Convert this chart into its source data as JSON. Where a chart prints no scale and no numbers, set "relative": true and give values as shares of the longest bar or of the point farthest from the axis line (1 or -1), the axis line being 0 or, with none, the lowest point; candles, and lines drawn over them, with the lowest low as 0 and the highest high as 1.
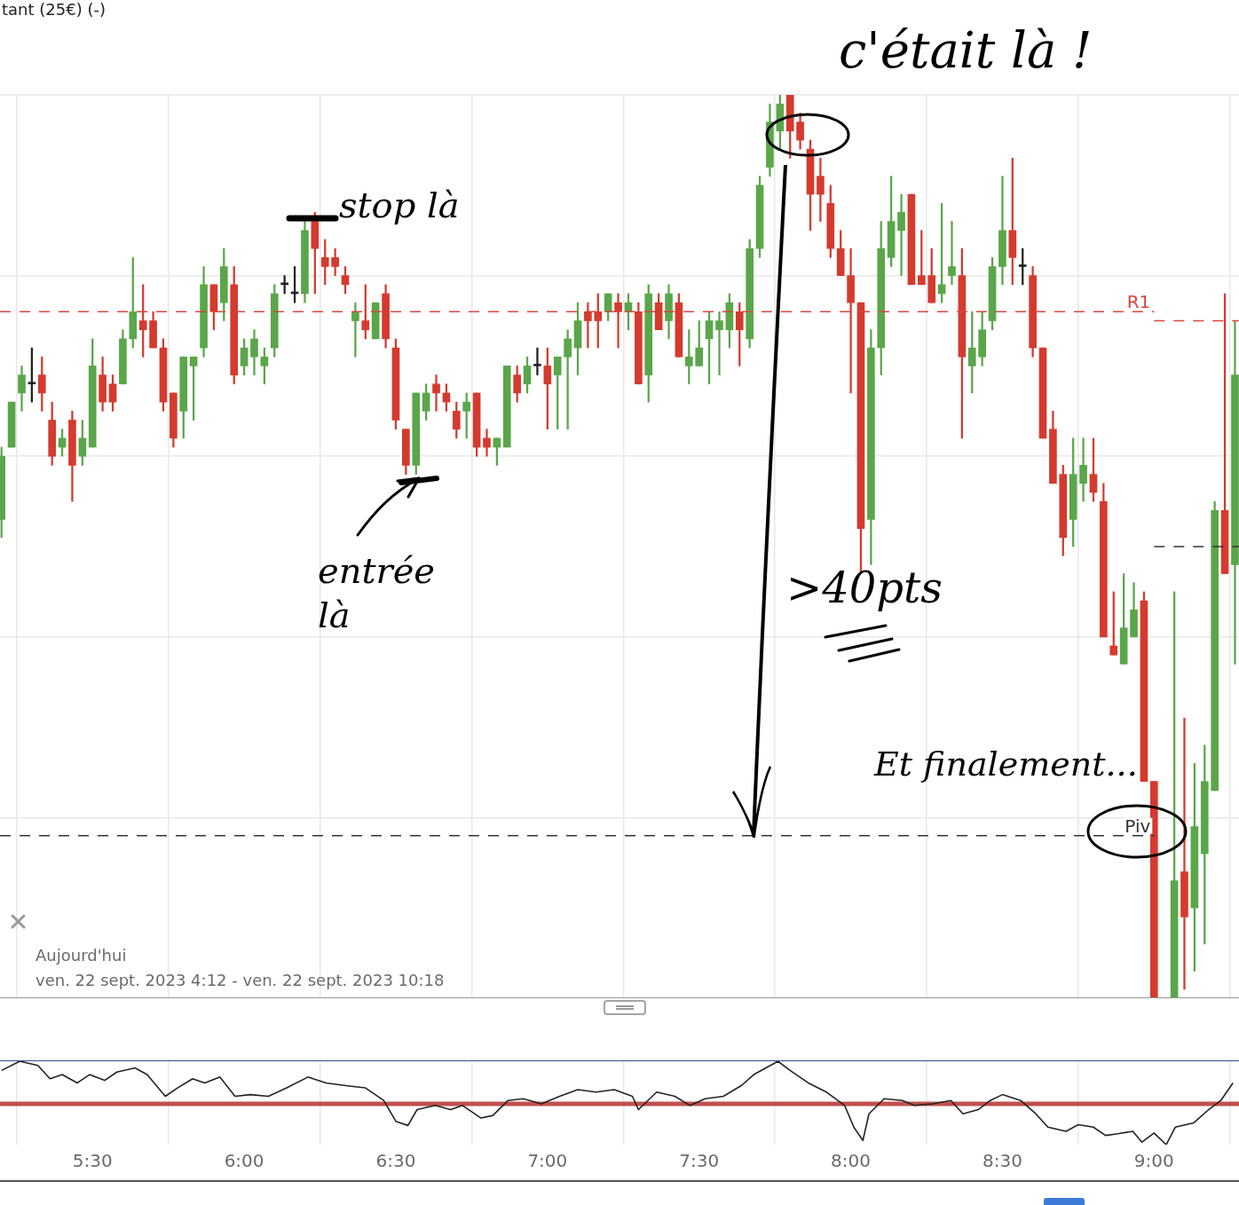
{
  "chart_data": [
    {
      "type": "candlestick",
      "relative": true,
      "grid": true,
      "tick_labels": false,
      "xlim": [
        5.195,
        9.28
      ],
      "xticks": [
        {
          "value": 5.5,
          "label": null
        },
        {
          "value": 6,
          "label": null
        },
        {
          "value": 6.5,
          "label": null
        },
        {
          "value": 7,
          "label": null
        },
        {
          "value": 7.5,
          "label": null
        },
        {
          "value": 8,
          "label": null
        },
        {
          "value": 8.5,
          "label": null
        },
        {
          "value": 9,
          "label": null
        }
      ],
      "x": [
        5.2,
        5.2333,
        5.2667,
        5.3,
        5.3333,
        5.3667,
        5.4,
        5.4333,
        5.4667,
        5.5,
        5.5333,
        5.5667,
        5.6,
        5.6333,
        5.6667,
        5.7,
        5.7333,
        5.7667,
        5.8,
        5.8333,
        5.8667,
        5.9,
        5.9333,
        5.9667,
        6,
        6.0333,
        6.0667,
        6.1,
        6.1333,
        6.1667,
        6.2,
        6.2333,
        6.2667,
        6.3,
        6.3333,
        6.3667,
        6.4,
        6.4333,
        6.4667,
        6.5,
        6.5333,
        6.5667,
        6.6,
        6.6333,
        6.6667,
        6.7,
        6.7333,
        6.7667,
        6.8,
        6.8333,
        6.8667,
        6.9,
        6.9333,
        6.9667,
        7,
        7.0333,
        7.0667,
        7.1,
        7.1333,
        7.1667,
        7.2,
        7.2333,
        7.2667,
        7.3,
        7.3333,
        7.3667,
        7.4,
        7.4333,
        7.4667,
        7.5,
        7.5333,
        7.5667,
        7.6,
        7.6333,
        7.6667,
        7.7,
        7.7333,
        7.7667,
        7.8,
        7.8333,
        7.8667,
        7.9,
        7.9333,
        7.9667,
        8,
        8.0333,
        8.0667,
        8.1,
        8.1333,
        8.1667,
        8.2,
        8.2333,
        8.2667,
        8.3,
        8.3333,
        8.3667,
        8.4,
        8.4333,
        8.4667,
        8.5,
        8.5333,
        8.5667,
        8.6,
        8.6333,
        8.6667,
        8.7,
        8.7333,
        8.7667,
        8.8,
        8.8333,
        8.8667,
        8.9,
        8.9333,
        8.9667,
        9,
        9.0667,
        9.1,
        9.1333,
        9.1667,
        9.2,
        9.2333,
        9.2667
      ],
      "ohlc": [
        [
          0.53,
          0.61,
          0.51,
          0.6
        ],
        [
          0.61,
          0.66,
          0.61,
          0.66
        ],
        [
          0.67,
          0.7,
          0.65,
          0.69
        ],
        [
          0.68,
          0.72,
          0.66,
          0.68
        ],
        [
          0.69,
          0.71,
          0.65,
          0.67
        ],
        [
          0.64,
          0.66,
          0.59,
          0.6
        ],
        [
          0.61,
          0.63,
          0.6,
          0.62
        ],
        [
          0.64,
          0.65,
          0.55,
          0.59
        ],
        [
          0.6,
          0.64,
          0.59,
          0.62
        ],
        [
          0.61,
          0.73,
          0.61,
          0.7
        ],
        [
          0.69,
          0.71,
          0.65,
          0.66
        ],
        [
          0.68,
          0.69,
          0.65,
          0.66
        ],
        [
          0.68,
          0.74,
          0.68,
          0.73
        ],
        [
          0.73,
          0.82,
          0.72,
          0.76
        ],
        [
          0.75,
          0.79,
          0.71,
          0.74
        ],
        [
          0.75,
          0.76,
          0.72,
          0.72
        ],
        [
          0.72,
          0.73,
          0.65,
          0.66
        ],
        [
          0.67,
          0.67,
          0.61,
          0.62
        ],
        [
          0.65,
          0.71,
          0.62,
          0.71
        ],
        [
          0.7,
          0.71,
          0.64,
          0.71
        ],
        [
          0.72,
          0.81,
          0.71,
          0.79
        ],
        [
          0.79,
          0.79,
          0.74,
          0.76
        ],
        [
          0.77,
          0.83,
          0.75,
          0.81
        ],
        [
          0.79,
          0.81,
          0.68,
          0.69
        ],
        [
          0.7,
          0.73,
          0.69,
          0.72
        ],
        [
          0.71,
          0.74,
          0.69,
          0.73
        ],
        [
          0.7,
          0.72,
          0.68,
          0.71
        ],
        [
          0.72,
          0.79,
          0.71,
          0.78
        ],
        [
          0.79,
          0.8,
          0.78,
          0.79
        ],
        [
          0.78,
          0.81,
          0.77,
          0.78
        ],
        [
          0.78,
          0.86,
          0.77,
          0.85
        ],
        [
          0.86,
          0.87,
          0.78,
          0.83
        ],
        [
          0.82,
          0.84,
          0.79,
          0.81
        ],
        [
          0.82,
          0.83,
          0.8,
          0.81
        ],
        [
          0.8,
          0.81,
          0.78,
          0.79
        ],
        [
          0.75,
          0.77,
          0.71,
          0.76
        ],
        [
          0.75,
          0.79,
          0.73,
          0.74
        ],
        [
          0.73,
          0.77,
          0.73,
          0.77
        ],
        [
          0.78,
          0.79,
          0.72,
          0.73
        ],
        [
          0.72,
          0.73,
          0.63,
          0.64
        ],
        [
          0.63,
          0.63,
          0.58,
          0.59
        ],
        [
          0.59,
          0.67,
          0.58,
          0.67
        ],
        [
          0.65,
          0.68,
          0.64,
          0.67
        ],
        [
          0.68,
          0.69,
          0.65,
          0.67
        ],
        [
          0.67,
          0.68,
          0.65,
          0.66
        ],
        [
          0.65,
          0.66,
          0.62,
          0.63
        ],
        [
          0.65,
          0.67,
          0.62,
          0.66
        ],
        [
          0.67,
          0.67,
          0.6,
          0.61
        ],
        [
          0.62,
          0.63,
          0.6,
          0.61
        ],
        [
          0.61,
          0.62,
          0.59,
          0.62
        ],
        [
          0.61,
          0.7,
          0.61,
          0.7
        ],
        [
          0.69,
          0.7,
          0.66,
          0.67
        ],
        [
          0.68,
          0.71,
          0.67,
          0.7
        ],
        [
          0.7,
          0.72,
          0.69,
          0.7
        ],
        [
          0.7,
          0.72,
          0.63,
          0.68
        ],
        [
          0.69,
          0.71,
          0.63,
          0.71
        ],
        [
          0.71,
          0.74,
          0.63,
          0.73
        ],
        [
          0.72,
          0.77,
          0.69,
          0.75
        ],
        [
          0.76,
          0.77,
          0.72,
          0.75
        ],
        [
          0.76,
          0.78,
          0.72,
          0.75
        ],
        [
          0.76,
          0.78,
          0.75,
          0.78
        ],
        [
          0.77,
          0.78,
          0.72,
          0.76
        ],
        [
          0.76,
          0.78,
          0.74,
          0.77
        ],
        [
          0.76,
          0.77,
          0.68,
          0.68
        ],
        [
          0.69,
          0.79,
          0.66,
          0.78
        ],
        [
          0.77,
          0.78,
          0.74,
          0.74
        ],
        [
          0.75,
          0.79,
          0.73,
          0.78
        ],
        [
          0.77,
          0.78,
          0.71,
          0.71
        ],
        [
          0.7,
          0.74,
          0.68,
          0.71
        ],
        [
          0.7,
          0.75,
          0.7,
          0.72
        ],
        [
          0.73,
          0.76,
          0.68,
          0.75
        ],
        [
          0.74,
          0.76,
          0.69,
          0.75
        ],
        [
          0.74,
          0.78,
          0.72,
          0.77
        ],
        [
          0.76,
          0.77,
          0.7,
          0.74
        ],
        [
          0.73,
          0.84,
          0.72,
          0.83
        ],
        [
          0.83,
          0.91,
          0.82,
          0.9
        ],
        [
          0.92,
          0.99,
          0.91,
          0.97
        ],
        [
          0.96,
          1.0,
          0.94,
          0.99
        ],
        [
          1.0,
          1.0,
          0.93,
          0.96
        ],
        [
          0.97,
          0.98,
          0.94,
          0.95
        ],
        [
          0.94,
          0.95,
          0.85,
          0.89
        ],
        [
          0.91,
          0.93,
          0.86,
          0.89
        ],
        [
          0.88,
          0.9,
          0.82,
          0.83
        ],
        [
          0.83,
          0.85,
          0.8,
          0.8
        ],
        [
          0.8,
          0.83,
          0.67,
          0.77
        ],
        [
          0.77,
          0.77,
          0.47,
          0.52
        ],
        [
          0.53,
          0.74,
          0.48,
          0.72
        ],
        [
          0.72,
          0.86,
          0.69,
          0.83
        ],
        [
          0.82,
          0.91,
          0.81,
          0.86
        ],
        [
          0.85,
          0.89,
          0.8,
          0.87
        ],
        [
          0.89,
          0.89,
          0.79,
          0.79
        ],
        [
          0.8,
          0.85,
          0.79,
          0.79
        ],
        [
          0.8,
          0.83,
          0.77,
          0.77
        ],
        [
          0.78,
          0.88,
          0.77,
          0.79
        ],
        [
          0.8,
          0.86,
          0.79,
          0.81
        ],
        [
          0.8,
          0.83,
          0.62,
          0.71
        ],
        [
          0.7,
          0.76,
          0.67,
          0.72
        ],
        [
          0.71,
          0.76,
          0.7,
          0.74
        ],
        [
          0.75,
          0.82,
          0.74,
          0.81
        ],
        [
          0.81,
          0.91,
          0.79,
          0.85
        ],
        [
          0.85,
          0.93,
          0.79,
          0.82
        ],
        [
          0.81,
          0.83,
          0.79,
          0.81
        ],
        [
          0.8,
          0.81,
          0.71,
          0.72
        ],
        [
          0.72,
          0.72,
          0.62,
          0.62
        ],
        [
          0.63,
          0.65,
          0.57,
          0.57
        ],
        [
          0.58,
          0.59,
          0.49,
          0.51
        ],
        [
          0.53,
          0.62,
          0.5,
          0.58
        ],
        [
          0.57,
          0.62,
          0.55,
          0.59
        ],
        [
          0.58,
          0.62,
          0.55,
          0.56
        ],
        [
          0.55,
          0.57,
          0.4,
          0.4
        ],
        [
          0.39,
          0.45,
          0.38,
          0.38
        ],
        [
          0.37,
          0.47,
          0.37,
          0.41
        ],
        [
          0.4,
          0.46,
          0.4,
          0.43
        ],
        [
          0.44,
          0.45,
          0.24,
          0.24
        ],
        [
          0.24,
          0.24,
          0,
          0
        ],
        [
          0,
          0.45,
          0,
          0.13
        ],
        [
          0.14,
          0.31,
          0.01,
          0.09
        ],
        [
          0.1,
          0.26,
          0.03,
          0.19
        ],
        [
          0.16,
          0.28,
          0.06,
          0.24
        ],
        [
          0.23,
          0.55,
          0.23,
          0.54
        ],
        [
          0.54,
          0.78,
          0.47,
          0.47
        ],
        [
          0.48,
          0.75,
          0.37,
          0.69
        ]
      ],
      "colors": [
        "#5aa64a",
        "#5aa64a",
        "#5aa64a",
        "#222222",
        "#d53a2e",
        "#d53a2e",
        "#5aa64a",
        "#d53a2e",
        "#5aa64a",
        "#5aa64a",
        "#d53a2e",
        "#d53a2e",
        "#5aa64a",
        "#5aa64a",
        "#d53a2e",
        "#d53a2e",
        "#d53a2e",
        "#d53a2e",
        "#5aa64a",
        "#5aa64a",
        "#5aa64a",
        "#d53a2e",
        "#5aa64a",
        "#d53a2e",
        "#5aa64a",
        "#5aa64a",
        "#5aa64a",
        "#5aa64a",
        "#222222",
        "#222222",
        "#5aa64a",
        "#d53a2e",
        "#d53a2e",
        "#d53a2e",
        "#d53a2e",
        "#5aa64a",
        "#d53a2e",
        "#5aa64a",
        "#d53a2e",
        "#d53a2e",
        "#d53a2e",
        "#5aa64a",
        "#5aa64a",
        "#d53a2e",
        "#d53a2e",
        "#d53a2e",
        "#5aa64a",
        "#d53a2e",
        "#d53a2e",
        "#5aa64a",
        "#5aa64a",
        "#d53a2e",
        "#5aa64a",
        "#222222",
        "#d53a2e",
        "#5aa64a",
        "#5aa64a",
        "#5aa64a",
        "#d53a2e",
        "#d53a2e",
        "#5aa64a",
        "#d53a2e",
        "#5aa64a",
        "#d53a2e",
        "#5aa64a",
        "#d53a2e",
        "#5aa64a",
        "#d53a2e",
        "#5aa64a",
        "#5aa64a",
        "#5aa64a",
        "#5aa64a",
        "#5aa64a",
        "#d53a2e",
        "#5aa64a",
        "#5aa64a",
        "#5aa64a",
        "#5aa64a",
        "#d53a2e",
        "#d53a2e",
        "#d53a2e",
        "#d53a2e",
        "#d53a2e",
        "#d53a2e",
        "#d53a2e",
        "#d53a2e",
        "#5aa64a",
        "#5aa64a",
        "#5aa64a",
        "#5aa64a",
        "#d53a2e",
        "#d53a2e",
        "#d53a2e",
        "#5aa64a",
        "#5aa64a",
        "#d53a2e",
        "#5aa64a",
        "#5aa64a",
        "#5aa64a",
        "#5aa64a",
        "#d53a2e",
        "#222222",
        "#d53a2e",
        "#d53a2e",
        "#d53a2e",
        "#d53a2e",
        "#5aa64a",
        "#5aa64a",
        "#d53a2e",
        "#d53a2e",
        "#d53a2e",
        "#5aa64a",
        "#5aa64a",
        "#d53a2e",
        "#d53a2e",
        "#5aa64a",
        "#d53a2e",
        "#5aa64a",
        "#5aa64a",
        "#5aa64a",
        "#d53a2e",
        "#5aa64a"
      ],
      "series": [
        {
          "type": "line",
          "name": "R1",
          "color": "#d9463c",
          "line_style": "dashed",
          "x": [
            5.195,
            9
          ],
          "values": [
            0.76,
            0.76
          ]
        },
        {
          "type": "line",
          "color": "#d9463c",
          "line_style": "dashed",
          "x": [
            9,
            9.28
          ],
          "values": [
            0.75,
            0.75
          ]
        },
        {
          "type": "line",
          "name": "Piv",
          "color": "#333333",
          "line_style": "dashed",
          "x": [
            5.195,
            9
          ],
          "values": [
            0.18,
            0.18
          ]
        },
        {
          "type": "line",
          "color": "#333333",
          "line_style": "dashed",
          "x": [
            9,
            9.28
          ],
          "values": [
            0.5,
            0.5
          ]
        }
      ],
      "annotations": [
        "tant (25€) (-)",
        "c'était là !",
        "stop là",
        "entrée là",
        ">40pts",
        "Et finalement...",
        "Aujourd'hui",
        "ven. 22 sept. 2023 4:12 - ven. 22 sept. 2023 10:18"
      ]
    },
    {
      "type": "line",
      "relative": true,
      "grid": "x",
      "tick_labels": "x",
      "color": "#222222",
      "xlim": [
        5.195,
        9.28
      ],
      "xticks": [
        {
          "value": 5.5,
          "label": "5:30"
        },
        {
          "value": 6,
          "label": "6:00"
        },
        {
          "value": 6.5,
          "label": "6:30"
        },
        {
          "value": 7,
          "label": "7:00"
        },
        {
          "value": 7.5,
          "label": "7:30"
        },
        {
          "value": 8,
          "label": "8:00"
        },
        {
          "value": 8.5,
          "label": "8:30"
        },
        {
          "value": 9,
          "label": "9:00"
        }
      ],
      "x": [
        5.2,
        5.26,
        5.32,
        5.36,
        5.4,
        5.45,
        5.49,
        5.54,
        5.58,
        5.64,
        5.68,
        5.74,
        5.78,
        5.83,
        5.87,
        5.92,
        5.97,
        6.02,
        6.08,
        6.14,
        6.21,
        6.27,
        6.33,
        6.4,
        6.46,
        6.5,
        6.54,
        6.57,
        6.63,
        6.68,
        6.72,
        6.78,
        6.82,
        6.87,
        6.92,
        6.98,
        7.04,
        7.1,
        7.16,
        7.22,
        7.28,
        7.3,
        7.36,
        7.42,
        7.47,
        7.52,
        7.58,
        7.64,
        7.68,
        7.76,
        7.8,
        7.86,
        7.92,
        7.98,
        8.01,
        8.04,
        8.06,
        8.11,
        8.17,
        8.21,
        8.27,
        8.33,
        8.37,
        8.42,
        8.46,
        8.5,
        8.56,
        8.61,
        8.65,
        8.71,
        8.75,
        8.8,
        8.84,
        8.88,
        8.93,
        8.96,
        9,
        9.04,
        9.07,
        9.13,
        9.18,
        9.22,
        9.26
      ],
      "values": [
        0.89,
        1,
        0.95,
        0.79,
        0.84,
        0.74,
        0.84,
        0.77,
        0.87,
        0.92,
        0.84,
        0.58,
        0.68,
        0.79,
        0.74,
        0.81,
        0.58,
        0.6,
        0.58,
        0.68,
        0.81,
        0.74,
        0.71,
        0.68,
        0.53,
        0.28,
        0.23,
        0.42,
        0.47,
        0.42,
        0.47,
        0.32,
        0.35,
        0.53,
        0.55,
        0.49,
        0.58,
        0.66,
        0.63,
        0.66,
        0.58,
        0.42,
        0.63,
        0.58,
        0.47,
        0.55,
        0.58,
        0.71,
        0.84,
        1,
        0.89,
        0.74,
        0.63,
        0.47,
        0.21,
        0.05,
        0.37,
        0.55,
        0.53,
        0.47,
        0.49,
        0.53,
        0.37,
        0.42,
        0.53,
        0.6,
        0.53,
        0.37,
        0.21,
        0.16,
        0.24,
        0.21,
        0.11,
        0.13,
        0.16,
        0.03,
        0.14,
        0,
        0.21,
        0.26,
        0.42,
        0.53,
        0.74
      ],
      "ref_lines": [
        {
          "axis": "y",
          "value": 0.49,
          "color": "#c0504d",
          "line_style": "solid"
        }
      ]
    }
  ]
}
